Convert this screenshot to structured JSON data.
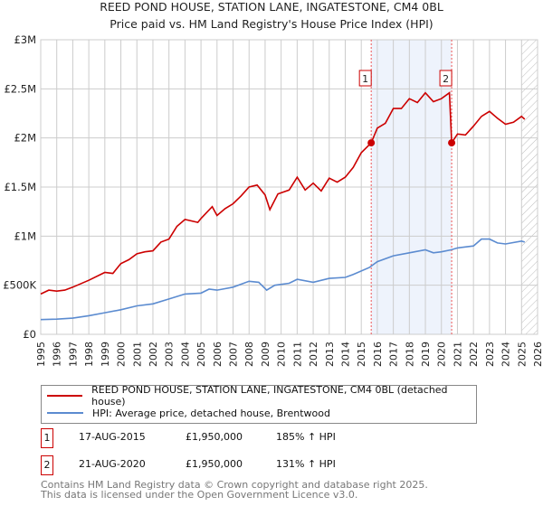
{
  "chart_data": {
    "type": "line",
    "title": "REED POND HOUSE, STATION LANE, INGATESTONE, CM4 0BL",
    "subtitle": "Price paid vs. HM Land Registry's House Price Index (HPI)",
    "xlim": [
      1995,
      2026
    ],
    "ylim": [
      0,
      3000000
    ],
    "x_ticks": [
      "1995",
      "1996",
      "1997",
      "1998",
      "1999",
      "2000",
      "2001",
      "2002",
      "2003",
      "2004",
      "2005",
      "2006",
      "2007",
      "2008",
      "2009",
      "2010",
      "2011",
      "2012",
      "2013",
      "2014",
      "2015",
      "2016",
      "2017",
      "2018",
      "2019",
      "2020",
      "2021",
      "2022",
      "2023",
      "2024",
      "2025",
      "2026"
    ],
    "y_ticks": [
      {
        "v": 0,
        "label": "£0"
      },
      {
        "v": 500000,
        "label": "£500K"
      },
      {
        "v": 1000000,
        "label": "£1M"
      },
      {
        "v": 1500000,
        "label": "£1.5M"
      },
      {
        "v": 2000000,
        "label": "£2M"
      },
      {
        "v": 2500000,
        "label": "£2.5M"
      },
      {
        "v": 3000000,
        "label": "£3M"
      }
    ],
    "grid": true,
    "series": [
      {
        "name": "REED POND HOUSE, STATION LANE, INGATESTONE, CM4 0BL (detached house)",
        "color": "#cc0000",
        "x": [
          1995,
          1995.5,
          1996,
          1996.5,
          1997,
          1998,
          1999,
          1999.5,
          2000,
          2000.5,
          2001,
          2001.5,
          2002,
          2002.5,
          2003,
          2003.5,
          2004,
          2004.8,
          2005,
          2005.7,
          2006,
          2006.5,
          2007,
          2007.5,
          2008,
          2008.5,
          2009,
          2009.3,
          2009.8,
          2010.5,
          2011,
          2011.5,
          2012,
          2012.5,
          2013,
          2013.5,
          2014,
          2014.5,
          2015,
          2015.62,
          2016,
          2016.5,
          2017,
          2017.5,
          2018,
          2018.5,
          2019,
          2019.5,
          2020,
          2020.5,
          2020.64,
          2021,
          2021.5,
          2022,
          2022.5,
          2023,
          2023.5,
          2024,
          2024.5,
          2025,
          2025.2
        ],
        "y": [
          410000,
          450000,
          440000,
          450000,
          480000,
          550000,
          630000,
          620000,
          720000,
          760000,
          820000,
          840000,
          850000,
          940000,
          970000,
          1100000,
          1170000,
          1140000,
          1180000,
          1300000,
          1210000,
          1280000,
          1330000,
          1410000,
          1500000,
          1520000,
          1420000,
          1270000,
          1430000,
          1470000,
          1600000,
          1470000,
          1540000,
          1460000,
          1590000,
          1550000,
          1600000,
          1700000,
          1850000,
          1950000,
          2100000,
          2150000,
          2300000,
          2300000,
          2400000,
          2360000,
          2460000,
          2370000,
          2400000,
          2460000,
          1950000,
          2040000,
          2030000,
          2120000,
          2220000,
          2270000,
          2200000,
          2140000,
          2160000,
          2220000,
          2190000
        ]
      },
      {
        "name": "HPI: Average price, detached house, Brentwood",
        "color": "#5b8bd0",
        "x": [
          1995,
          1996,
          1997,
          1998,
          1999,
          2000,
          2001,
          2002,
          2003,
          2004,
          2005,
          2005.5,
          2006,
          2007,
          2008,
          2008.6,
          2009.1,
          2009.6,
          2010.5,
          2011,
          2012,
          2013,
          2014,
          2014.5,
          2015.5,
          2016,
          2017,
          2018,
          2019,
          2019.5,
          2020,
          2020.6,
          2021,
          2022,
          2022.5,
          2023,
          2023.5,
          2024,
          2025,
          2025.2
        ],
        "y": [
          150000,
          155000,
          165000,
          190000,
          220000,
          250000,
          290000,
          310000,
          360000,
          410000,
          420000,
          460000,
          450000,
          480000,
          540000,
          530000,
          450000,
          500000,
          520000,
          560000,
          530000,
          570000,
          580000,
          610000,
          680000,
          740000,
          800000,
          830000,
          860000,
          830000,
          840000,
          860000,
          880000,
          900000,
          970000,
          970000,
          930000,
          920000,
          950000,
          940000
        ]
      }
    ],
    "annotations": [
      {
        "label": "1",
        "x": 2015.62,
        "y": 1950000,
        "date": "17-AUG-2015",
        "price": "£1,950,000",
        "hpi": "185% ↑ HPI"
      },
      {
        "label": "2",
        "x": 2020.64,
        "y": 1950000,
        "date": "21-AUG-2020",
        "price": "£1,950,000",
        "hpi": "131% ↑ HPI"
      }
    ],
    "shaded_range": [
      2015.62,
      2020.64
    ],
    "forecast_from": 2025.0,
    "legend_position": "bottom"
  },
  "footer": {
    "line1": "Contains HM Land Registry data © Crown copyright and database right 2025.",
    "line2": "This data is licensed under the Open Government Licence v3.0."
  }
}
